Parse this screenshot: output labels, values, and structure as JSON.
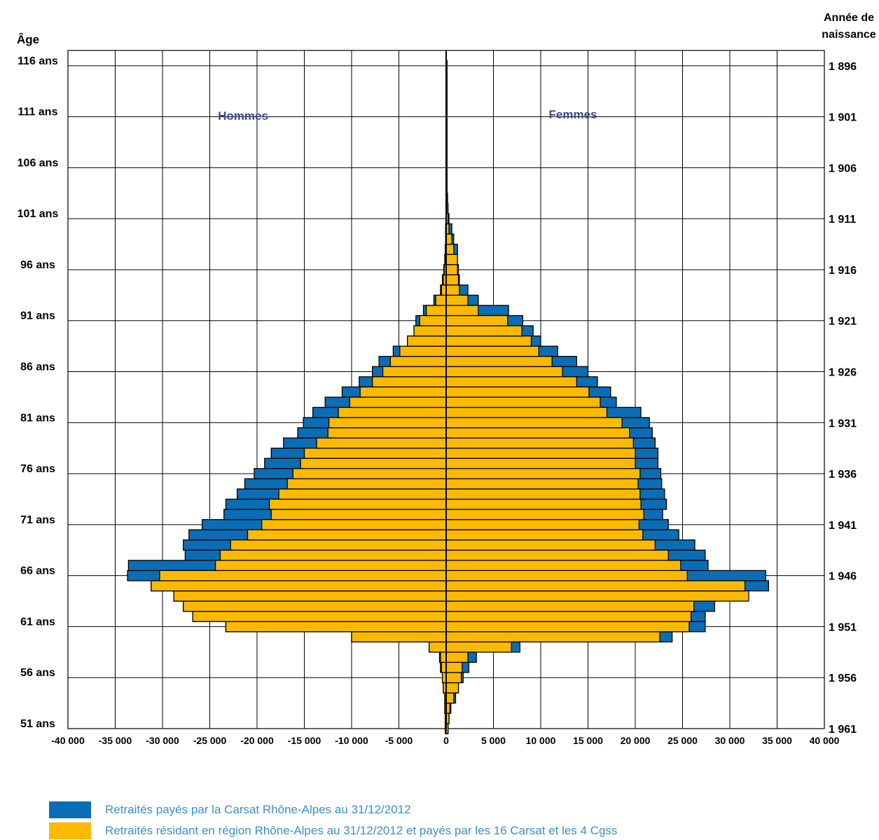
{
  "chart_data": {
    "type": "bar",
    "orientation": "horizontal-pyramid",
    "y_label_left": "Âge",
    "y_label_right": "Année de naissance",
    "left_panel_label": "Hommes",
    "right_panel_label": "Femmes",
    "xlim": [
      -40000,
      40000
    ],
    "x_ticks": [
      -40000,
      -35000,
      -30000,
      -25000,
      -20000,
      -15000,
      -10000,
      -5000,
      0,
      5000,
      10000,
      15000,
      20000,
      25000,
      30000,
      35000,
      40000
    ],
    "x_tick_labels": [
      "-40 000",
      "-35 000",
      "-30 000",
      "-25 000",
      "-20 000",
      "-15 000",
      "-10 000",
      "-5 000",
      "0",
      "5 000",
      "10 000",
      "15 000",
      "20 000",
      "25 000",
      "30 000",
      "35 000",
      "40 000"
    ],
    "age_ticks": [
      51,
      56,
      61,
      66,
      71,
      76,
      81,
      86,
      91,
      96,
      101,
      106,
      111,
      116
    ],
    "age_tick_labels": [
      "51 ans",
      "56 ans",
      "61 ans",
      "66 ans",
      "71 ans",
      "76 ans",
      "81 ans",
      "86 ans",
      "91 ans",
      "96 ans",
      "101 ans",
      "106 ans",
      "111 ans",
      "116 ans"
    ],
    "birth_year_tick_labels": [
      "1 961",
      "1 956",
      "1 951",
      "1 946",
      "1 941",
      "1 936",
      "1 931",
      "1 926",
      "1 921",
      "1 916",
      "1 911",
      "1 906",
      "1 901",
      "1 896"
    ],
    "grid": true,
    "legend_position": "bottom-left",
    "ages": [
      51,
      52,
      53,
      54,
      55,
      56,
      57,
      58,
      59,
      60,
      61,
      62,
      63,
      64,
      65,
      66,
      67,
      68,
      69,
      70,
      71,
      72,
      73,
      74,
      75,
      76,
      77,
      78,
      79,
      80,
      81,
      82,
      83,
      84,
      85,
      86,
      87,
      88,
      89,
      90,
      91,
      92,
      93,
      94,
      95,
      96,
      97,
      98,
      99,
      100,
      101,
      102,
      103,
      104,
      105,
      106,
      107,
      108,
      109,
      110,
      111,
      112,
      113,
      114,
      115,
      116
    ],
    "series": [
      {
        "name": "Retraités payés par la Carsat Rhône-Alpes au 31/12/2012",
        "color": "#0B6DB5",
        "men": [
          -100,
          -100,
          -150,
          -150,
          -300,
          -400,
          -600,
          -700,
          -1800,
          -10000,
          -23300,
          -26800,
          -27800,
          -28800,
          -31200,
          -33700,
          -33600,
          -27600,
          -27800,
          -27200,
          -25800,
          -23500,
          -23300,
          -22100,
          -21300,
          -20300,
          -19200,
          -18500,
          -17200,
          -15700,
          -15100,
          -14100,
          -12800,
          -11000,
          -9200,
          -7800,
          -7100,
          -5600,
          -4100,
          -3400,
          -3200,
          -2400,
          -1300,
          -600,
          -400,
          -250,
          -150,
          -100,
          -50,
          -50,
          -20,
          -10,
          -10,
          -10,
          -10,
          -10,
          -10,
          -10,
          -10,
          -10,
          -10,
          -10,
          -10,
          -10,
          -10,
          -10
        ],
        "women": [
          200,
          300,
          500,
          1000,
          1300,
          1800,
          2400,
          3200,
          7800,
          23900,
          27400,
          27400,
          28400,
          28700,
          34100,
          33800,
          27700,
          27400,
          26300,
          24600,
          23500,
          22900,
          23300,
          23100,
          22800,
          22700,
          22400,
          22400,
          22100,
          21800,
          21500,
          20600,
          18000,
          17400,
          16000,
          15000,
          13800,
          11800,
          10000,
          9200,
          8100,
          6600,
          3400,
          2300,
          1400,
          1300,
          1200,
          1200,
          800,
          600,
          300,
          200,
          150,
          100,
          100,
          100,
          100,
          100,
          100,
          100,
          100,
          100,
          100,
          100,
          100,
          100
        ]
      },
      {
        "name": "Retraités résidant en région Rhône-Alpes au 31/12/2012 et payés par les 16 Carsat et les 4 Cgss",
        "color": "#FBB900",
        "men": [
          -100,
          -100,
          -150,
          -150,
          -300,
          -400,
          -500,
          -600,
          -1800,
          -10000,
          -23300,
          -26800,
          -27800,
          -28800,
          -31200,
          -30300,
          -24400,
          -23900,
          -22800,
          -21000,
          -19500,
          -18500,
          -18700,
          -17700,
          -16800,
          -16200,
          -15400,
          -15000,
          -13700,
          -12500,
          -12400,
          -11400,
          -10200,
          -9100,
          -7800,
          -6700,
          -5900,
          -4900,
          -4100,
          -3400,
          -2800,
          -2100,
          -1100,
          -500,
          -300,
          -200,
          -100,
          -100,
          -50,
          -50,
          -20,
          -10,
          -10,
          -10,
          -10,
          -10,
          -10,
          -10,
          -10,
          -10,
          -10,
          -10,
          -10,
          -10,
          -10,
          -10
        ],
        "women": [
          200,
          300,
          400,
          800,
          1300,
          1600,
          1700,
          2300,
          6900,
          22600,
          25700,
          25900,
          26200,
          32000,
          31600,
          25500,
          24800,
          23500,
          22100,
          20800,
          20400,
          20900,
          20600,
          20500,
          20300,
          20500,
          20000,
          20000,
          19800,
          19400,
          18600,
          17000,
          16300,
          15100,
          13800,
          12300,
          11200,
          9800,
          9000,
          8000,
          6500,
          3400,
          2300,
          1400,
          1300,
          1200,
          1200,
          800,
          600,
          300,
          200,
          150,
          100,
          100,
          100,
          100,
          100,
          100,
          100,
          100,
          100,
          100,
          100,
          100,
          100,
          100
        ]
      }
    ]
  },
  "legend": [
    {
      "label": "Retraités payés par la Carsat Rhône-Alpes au 31/12/2012",
      "color": "#0B6DB5"
    },
    {
      "label": "Retraités résidant en région Rhône-Alpes au 31/12/2012 et payés par les 16 Carsat et les 4 Cgss",
      "color": "#FBB900"
    }
  ]
}
